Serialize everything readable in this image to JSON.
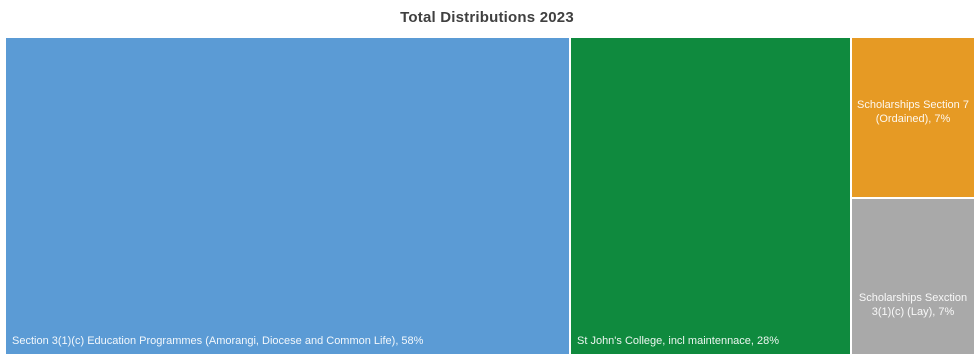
{
  "chart_data": {
    "type": "treemap",
    "title": "Total Distributions 2023",
    "items": [
      {
        "label": "Section 3(1)(c) Education Programmes (Amorangi, Diocese and Common Life), 58%",
        "value": 58,
        "color": "#5b9bd5"
      },
      {
        "label": "St John's College, incl maintennace, 28%",
        "value": 28,
        "color": "#0f8a3e"
      },
      {
        "label": "Scholarships Section 7 (Ordained), 7%",
        "value": 7,
        "color": "#e69a24"
      },
      {
        "label": "Scholarships Sexction 3(1)(c) (Lay), 7%",
        "value": 7,
        "color": "#a9a9a9"
      }
    ]
  }
}
